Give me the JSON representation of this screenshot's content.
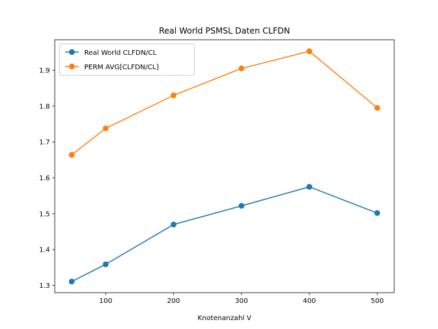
{
  "chart_data": {
    "type": "line",
    "title": "Real World PSMSL Daten CLFDN",
    "xlabel": "Knotenanzahl V",
    "ylabel": "",
    "x": [
      50,
      100,
      200,
      300,
      400,
      500
    ],
    "xlim": [
      25,
      525
    ],
    "ylim": [
      1.28,
      1.985
    ],
    "xticks": [
      100,
      200,
      300,
      400,
      500
    ],
    "yticks": [
      1.3,
      1.4,
      1.5,
      1.6,
      1.7,
      1.8,
      1.9
    ],
    "ytick_labels": [
      "1.3",
      "1.4",
      "1.5",
      "1.6",
      "1.7",
      "1.8",
      "1.9"
    ],
    "legend_position": "upper-left",
    "grid": false,
    "series": [
      {
        "name": "Real World CLFDN/CL",
        "color": "#1f77b4",
        "values": [
          1.311,
          1.359,
          1.47,
          1.522,
          1.575,
          1.502
        ]
      },
      {
        "name": "PERM AVG[CLFDN/CL]",
        "color": "#ff7f0e",
        "values": [
          1.664,
          1.738,
          1.83,
          1.905,
          1.953,
          1.795
        ]
      }
    ]
  }
}
